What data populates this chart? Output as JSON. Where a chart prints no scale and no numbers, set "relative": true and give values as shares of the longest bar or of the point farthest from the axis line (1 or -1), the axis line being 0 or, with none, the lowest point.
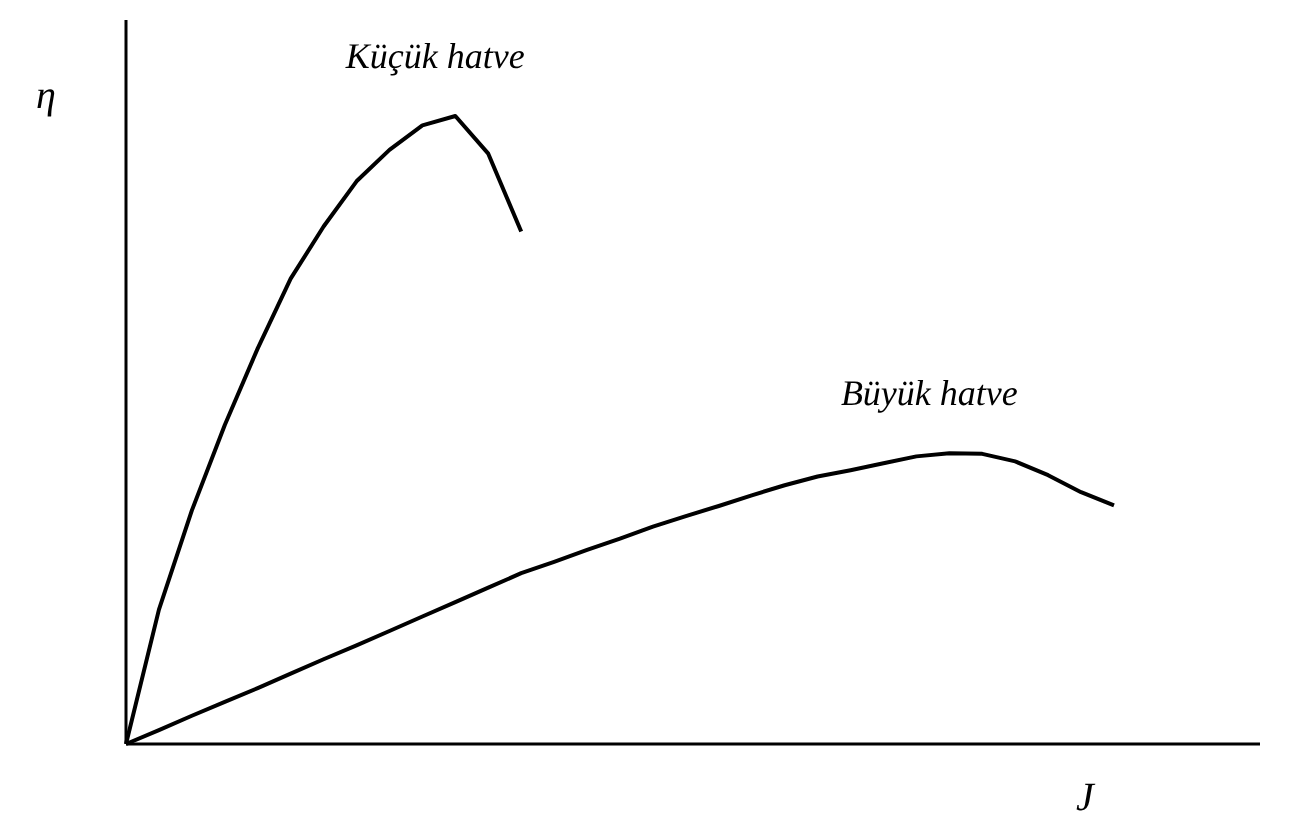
{
  "chart_data": {
    "type": "line",
    "relative": true,
    "xlabel": "J",
    "ylabel": "η",
    "marker": "none",
    "line_style": "solid",
    "categories": [
      null,
      null,
      null,
      null,
      null,
      null,
      null,
      null,
      null,
      null,
      null,
      null,
      null,
      null,
      null,
      null,
      null,
      null,
      null,
      null,
      null,
      null,
      null,
      null,
      null,
      null,
      null,
      null,
      null,
      null,
      null
    ],
    "series": [
      {
        "name": "Küçük hatve",
        "color": "#000000",
        "values": [
          0,
          0.214,
          0.372,
          0.508,
          0.63,
          0.741,
          0.824,
          0.896,
          0.946,
          0.985,
          1,
          0.94,
          0.816,
          null,
          null,
          null,
          null,
          null,
          null,
          null,
          null,
          null,
          null,
          null,
          null,
          null,
          null,
          null,
          null,
          null,
          null
        ]
      },
      {
        "name": "Büyük hatve",
        "color": "#000000",
        "values": [
          0,
          0.022,
          0.045,
          0.067,
          0.089,
          0.112,
          0.135,
          0.157,
          0.18,
          0.203,
          0.226,
          0.249,
          0.272,
          0.29,
          0.309,
          0.327,
          0.346,
          0.363,
          0.379,
          0.396,
          0.412,
          0.426,
          0.436,
          0.447,
          0.458,
          0.463,
          0.462,
          0.45,
          0.428,
          0.401,
          0.38
        ]
      }
    ]
  }
}
